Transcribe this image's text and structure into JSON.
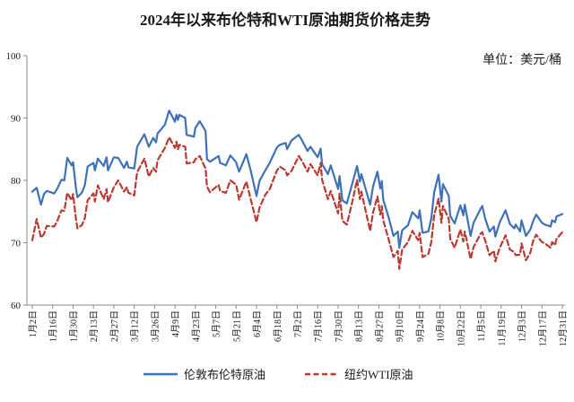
{
  "chart_data": {
    "type": "line",
    "title": "2024年以来布伦特和WTI原油期货价格走势",
    "unit_label": "单位：美元/桶",
    "xlabel": "",
    "ylabel": "",
    "ylim": [
      60,
      100
    ],
    "yticks": [
      60,
      70,
      80,
      90,
      100
    ],
    "xticks": [
      "1月2日",
      "1月16日",
      "1月30日",
      "2月13日",
      "2月27日",
      "3月12日",
      "3月26日",
      "4月9日",
      "4月23日",
      "5月7日",
      "5月21日",
      "6月4日",
      "6月18日",
      "7月2日",
      "7月16日",
      "7月30日",
      "8月13日",
      "8月27日",
      "9月10日",
      "9月24日",
      "10月8日",
      "10月22日",
      "11月5日",
      "11月19日",
      "12月3日",
      "12月17日",
      "12月31日"
    ],
    "grid": false,
    "legend": "bottom",
    "x": [
      "1月2日",
      "1月5日",
      "1月8日",
      "1月10日",
      "1月12日",
      "1月17日",
      "1月19日",
      "1月22日",
      "1月24日",
      "1月26日",
      "1月29日",
      "1月30日",
      "2月1日",
      "2月2日",
      "2月5日",
      "2月7日",
      "2月9日",
      "2月13日",
      "2月14日",
      "2月16日",
      "2月20日",
      "2月22日",
      "2月23日",
      "2月27日",
      "3月1日",
      "3月5日",
      "3月7日",
      "3月8日",
      "3月12日",
      "3月14日",
      "3月19日",
      "3月22日",
      "3月25日",
      "3月27日",
      "3月28日",
      "4月2日",
      "4月5日",
      "4月9日",
      "4月10日",
      "4月11日",
      "4月12日",
      "4月16日",
      "4月17日",
      "4月22日",
      "4月23日",
      "4月26日",
      "4月30日",
      "5月1日",
      "5月3日",
      "5月9日",
      "5月10日",
      "5月14日",
      "5月17日",
      "5月21日",
      "5月23日",
      "5月28日",
      "5月31日",
      "6月4日",
      "6月6日",
      "6月10日",
      "6月13日",
      "6月18日",
      "6月20日",
      "6月24日",
      "6月25日",
      "6月28日",
      "7月3日",
      "7月5日",
      "7月9日",
      "7月11日",
      "7月16日",
      "7月18日",
      "7月19日",
      "7月23日",
      "7月25日",
      "7月30日",
      "7月31日",
      "8月2日",
      "8月5日",
      "8月9日",
      "8月12日",
      "8月14日",
      "8月15日",
      "8月21日",
      "8月23日",
      "8月26日",
      "8月28日",
      "8月29日",
      "8月30日",
      "9月3日",
      "9月6日",
      "9月9日",
      "9月10日",
      "9月12日",
      "9月16日",
      "9月19日",
      "9月23日",
      "9月24日",
      "9月26日",
      "9月30日",
      "10月2日",
      "10月4日",
      "10月7日",
      "10月9日",
      "10月10日",
      "10月14日",
      "10月15日",
      "10月18日",
      "10月22日",
      "10月24日",
      "10月25日",
      "10月29日",
      "10月31日",
      "11月5日",
      "11月6日",
      "11月8日",
      "11月11日",
      "11月14日",
      "11月15日",
      "11月18日",
      "11月22日",
      "11月25日",
      "11月28日",
      "11月29日",
      "12月2日",
      "12月3日",
      "12月6日",
      "12月9日",
      "12月11日",
      "12月13日",
      "12月17日",
      "12月19日",
      "12月23日",
      "12月24日",
      "12月26日",
      "12月27日",
      "12月31日"
    ],
    "series": [
      {
        "name": "伦敦布伦特原油",
        "color": "#3e72b8",
        "style": "solid",
        "values": [
          78.2,
          78.8,
          76.1,
          77.8,
          78.3,
          77.9,
          78.6,
          80.1,
          80.0,
          83.6,
          82.4,
          82.9,
          78.7,
          77.3,
          78.0,
          79.2,
          82.2,
          82.8,
          81.6,
          83.5,
          82.3,
          83.7,
          81.6,
          83.7,
          83.6,
          82.0,
          83.0,
          82.1,
          81.9,
          85.4,
          87.4,
          85.4,
          86.8,
          86.1,
          87.5,
          88.9,
          91.2,
          89.4,
          90.5,
          89.7,
          90.5,
          90.0,
          87.3,
          87.0,
          88.4,
          89.5,
          87.9,
          83.4,
          83.0,
          83.9,
          82.8,
          82.4,
          84.0,
          82.9,
          81.4,
          84.2,
          81.6,
          77.5,
          79.9,
          81.6,
          82.8,
          85.3,
          85.7,
          86.0,
          85.0,
          86.4,
          87.3,
          86.5,
          84.7,
          85.4,
          83.7,
          85.1,
          82.6,
          81.0,
          82.4,
          78.6,
          80.7,
          76.8,
          76.3,
          79.7,
          82.3,
          79.8,
          81.0,
          76.1,
          79.0,
          81.4,
          78.7,
          79.9,
          76.9,
          73.8,
          71.1,
          71.8,
          69.2,
          72.0,
          72.8,
          74.9,
          73.9,
          75.2,
          71.6,
          71.8,
          73.9,
          78.1,
          80.9,
          76.6,
          79.4,
          77.5,
          74.3,
          73.1,
          76.0,
          74.4,
          76.1,
          71.1,
          73.2,
          75.5,
          75.9,
          73.9,
          71.8,
          72.6,
          71.0,
          73.3,
          75.2,
          73.0,
          72.3,
          72.9,
          71.8,
          73.6,
          71.1,
          72.1,
          73.5,
          74.5,
          73.2,
          72.9,
          72.6,
          73.6,
          73.3,
          74.2,
          74.6
        ]
      },
      {
        "name": "纽约WTI原油",
        "color": "#b93a32",
        "style": "dashed",
        "values": [
          70.4,
          73.8,
          70.8,
          71.4,
          72.7,
          72.6,
          73.4,
          75.2,
          75.1,
          78.0,
          76.8,
          77.8,
          73.8,
          72.3,
          72.8,
          73.9,
          76.8,
          77.9,
          76.6,
          79.2,
          77.0,
          78.6,
          76.5,
          78.9,
          80.0,
          78.2,
          78.9,
          78.0,
          77.6,
          81.3,
          83.5,
          80.6,
          82.0,
          81.4,
          83.2,
          85.2,
          86.9,
          85.2,
          86.2,
          85.0,
          85.7,
          85.4,
          82.7,
          82.9,
          83.4,
          83.9,
          81.9,
          79.0,
          78.1,
          79.3,
          78.3,
          78.0,
          80.0,
          79.3,
          76.9,
          79.8,
          77.0,
          73.3,
          75.6,
          77.7,
          78.6,
          81.6,
          82.2,
          81.6,
          80.8,
          81.5,
          83.9,
          83.2,
          81.4,
          82.6,
          80.8,
          82.8,
          80.1,
          77.0,
          78.3,
          74.7,
          77.9,
          73.5,
          72.9,
          76.8,
          80.1,
          77.0,
          78.2,
          71.9,
          74.8,
          77.4,
          74.5,
          75.9,
          73.6,
          70.3,
          67.7,
          68.7,
          65.8,
          68.9,
          70.1,
          71.9,
          70.4,
          71.6,
          67.7,
          68.2,
          70.1,
          74.4,
          77.1,
          73.2,
          75.9,
          73.8,
          70.6,
          69.2,
          72.1,
          70.2,
          71.8,
          67.4,
          69.3,
          71.5,
          71.7,
          70.4,
          68.0,
          68.7,
          67.0,
          69.2,
          71.2,
          68.9,
          68.5,
          68.0,
          68.1,
          69.9,
          67.2,
          68.4,
          70.3,
          71.3,
          70.1,
          69.9,
          69.2,
          70.1,
          69.6,
          70.6,
          71.7
        ]
      }
    ]
  }
}
